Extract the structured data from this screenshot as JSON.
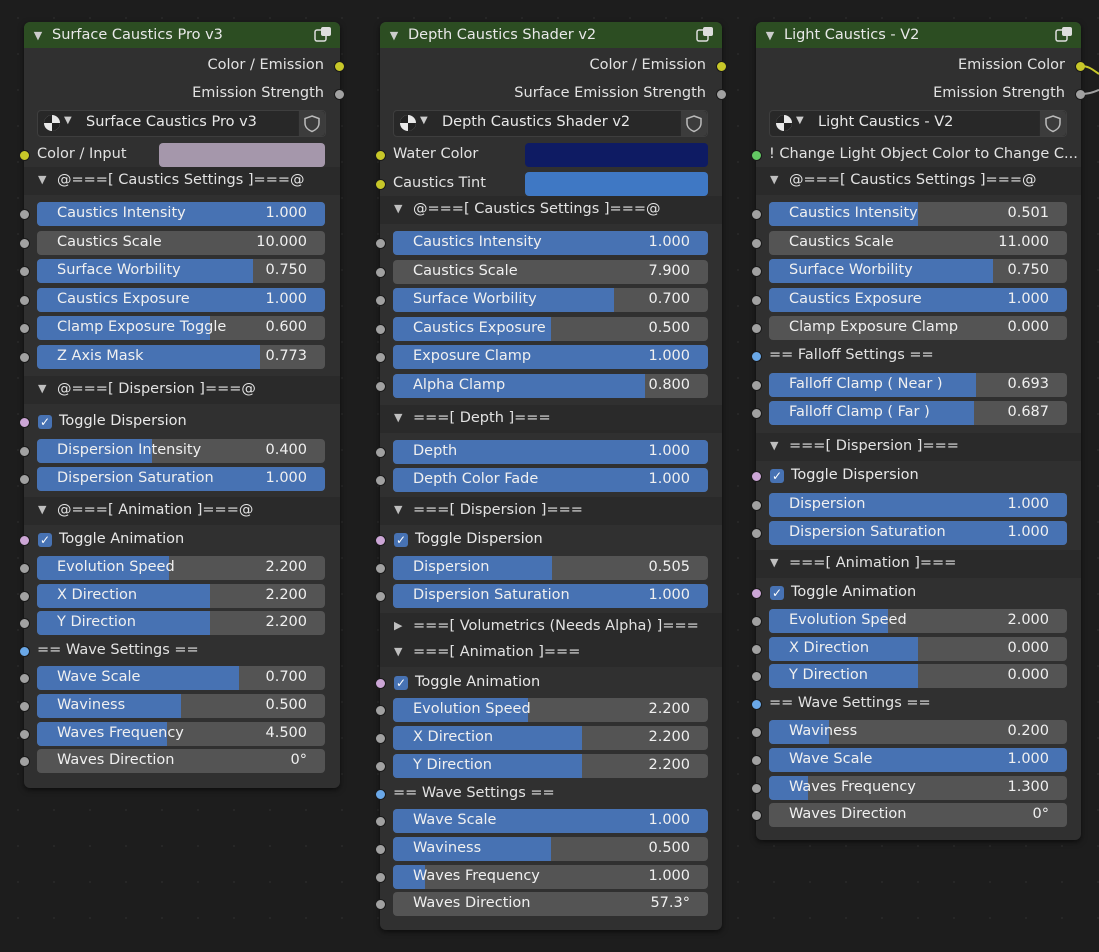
{
  "nodes": [
    {
      "title": "Surface Caustics Pro v3",
      "outputs": [
        "Color / Emission",
        "Emission Strength"
      ],
      "selector": "Surface Caustics Pro v3",
      "color_input": {
        "label": "Color / Input",
        "color": "#a597ab"
      },
      "panels": {
        "caustics": "@===[ Caustics Settings ]===@",
        "dispersion": "@===[ Dispersion ]===@",
        "animation": "@===[ Animation ]===@"
      },
      "caustics": [
        {
          "name": "Caustics Intensity",
          "value": "1.000",
          "fill": 1.0
        },
        {
          "name": "Caustics Scale",
          "value": "10.000",
          "fill": 0.0
        },
        {
          "name": "Surface Worbility",
          "value": "0.750",
          "fill": 0.75
        },
        {
          "name": "Caustics Exposure",
          "value": "1.000",
          "fill": 1.0
        },
        {
          "name": "Clamp Exposure Toggle",
          "value": "0.600",
          "fill": 0.6
        },
        {
          "name": "Z Axis Mask",
          "value": "0.773",
          "fill": 0.773
        }
      ],
      "dispersion_toggle": "Toggle Dispersion",
      "dispersion": [
        {
          "name": "Dispersion Intensity",
          "value": "0.400",
          "fill": 0.4
        },
        {
          "name": "Dispersion Saturation",
          "value": "1.000",
          "fill": 1.0
        }
      ],
      "animation_toggle": "Toggle Animation",
      "animation": [
        {
          "name": "Evolution Speed",
          "value": "2.200",
          "fill": 0.46
        },
        {
          "name": "X Direction",
          "value": "2.200",
          "fill": 0.6
        },
        {
          "name": "Y Direction",
          "value": "2.200",
          "fill": 0.6
        }
      ],
      "wave_label": "== Wave Settings ==",
      "waves": [
        {
          "name": "Wave Scale",
          "value": "0.700",
          "fill": 0.7
        },
        {
          "name": "Waviness",
          "value": "0.500",
          "fill": 0.5
        },
        {
          "name": "Waves Frequency",
          "value": "4.500",
          "fill": 0.45
        },
        {
          "name": "Waves Direction",
          "value": "0°",
          "fill": 0.0
        }
      ]
    },
    {
      "title": "Depth Caustics Shader v2",
      "outputs": [
        "Color / Emission",
        "Surface Emission Strength"
      ],
      "selector": "Depth Caustics Shader v2",
      "water_color": {
        "label": "Water Color",
        "color": "#0e1b63"
      },
      "tint": {
        "label": "Caustics Tint",
        "color": "#3f78c4"
      },
      "panels": {
        "caustics": "@===[ Caustics Settings ]===@",
        "depth": "===[ Depth ]===",
        "dispersion": "===[ Dispersion ]===",
        "volumetrics": "===[ Volumetrics (Needs Alpha) ]===",
        "animation": "===[ Animation ]==="
      },
      "caustics": [
        {
          "name": "Caustics Intensity",
          "value": "1.000",
          "fill": 1.0
        },
        {
          "name": "Caustics Scale",
          "value": "7.900",
          "fill": 0.0
        },
        {
          "name": "Surface Worbility",
          "value": "0.700",
          "fill": 0.7
        },
        {
          "name": "Caustics Exposure",
          "value": "0.500",
          "fill": 0.5
        },
        {
          "name": "Exposure Clamp",
          "value": "1.000",
          "fill": 1.0
        },
        {
          "name": "Alpha Clamp",
          "value": "0.800",
          "fill": 0.8
        }
      ],
      "depth": [
        {
          "name": "Depth",
          "value": "1.000",
          "fill": 1.0
        },
        {
          "name": "Depth Color Fade",
          "value": "1.000",
          "fill": 1.0
        }
      ],
      "dispersion_toggle": "Toggle Dispersion",
      "dispersion": [
        {
          "name": "Dispersion",
          "value": "0.505",
          "fill": 0.505
        },
        {
          "name": "Dispersion Saturation",
          "value": "1.000",
          "fill": 1.0
        }
      ],
      "animation_toggle": "Toggle Animation",
      "animation": [
        {
          "name": "Evolution Speed",
          "value": "2.200",
          "fill": 0.43
        },
        {
          "name": "X Direction",
          "value": "2.200",
          "fill": 0.6
        },
        {
          "name": "Y Direction",
          "value": "2.200",
          "fill": 0.6
        }
      ],
      "wave_label": "== Wave Settings ==",
      "waves": [
        {
          "name": "Wave Scale",
          "value": "1.000",
          "fill": 1.0
        },
        {
          "name": "Waviness",
          "value": "0.500",
          "fill": 0.5
        },
        {
          "name": "Waves Frequency",
          "value": "1.000",
          "fill": 0.1
        },
        {
          "name": "Waves Direction",
          "value": "57.3°",
          "fill": 0.0
        }
      ]
    },
    {
      "title": "Light Caustics - V2",
      "outputs": [
        "Emission Color",
        "Emission Strength"
      ],
      "selector": "Light Caustics - V2",
      "note": "! Change Light Object Color to Change C...",
      "panels": {
        "caustics": "@===[ Caustics Settings ]===@",
        "dispersion": "===[ Dispersion ]===",
        "animation": "===[ Animation ]==="
      },
      "caustics": [
        {
          "name": "Caustics Intensity",
          "value": "0.501",
          "fill": 0.501
        },
        {
          "name": "Caustics Scale",
          "value": "11.000",
          "fill": 0.0
        },
        {
          "name": "Surface Worbility",
          "value": "0.750",
          "fill": 0.75
        },
        {
          "name": "Caustics Exposure",
          "value": "1.000",
          "fill": 1.0
        },
        {
          "name": "Clamp Exposure Clamp",
          "value": "0.000",
          "fill": 0.0
        }
      ],
      "falloff_label": "== Falloff Settings ==",
      "falloff": [
        {
          "name": "Falloff Clamp ( Near )",
          "value": "0.693",
          "fill": 0.693
        },
        {
          "name": "Falloff Clamp ( Far )",
          "value": "0.687",
          "fill": 0.687
        }
      ],
      "dispersion_toggle": "Toggle Dispersion",
      "dispersion": [
        {
          "name": "Dispersion",
          "value": "1.000",
          "fill": 1.0
        },
        {
          "name": "Dispersion Saturation",
          "value": "1.000",
          "fill": 1.0
        }
      ],
      "animation_toggle": "Toggle Animation",
      "animation": [
        {
          "name": "Evolution Speed",
          "value": "2.000",
          "fill": 0.4
        },
        {
          "name": "X Direction",
          "value": "0.000",
          "fill": 0.5
        },
        {
          "name": "Y Direction",
          "value": "0.000",
          "fill": 0.5
        }
      ],
      "wave_label": "== Wave Settings ==",
      "waves": [
        {
          "name": "Waviness",
          "value": "0.200",
          "fill": 0.2
        },
        {
          "name": "Wave Scale",
          "value": "1.000",
          "fill": 1.0
        },
        {
          "name": "Waves Frequency",
          "value": "1.300",
          "fill": 0.13
        },
        {
          "name": "Waves Direction",
          "value": "0°",
          "fill": 0.0
        }
      ]
    }
  ]
}
